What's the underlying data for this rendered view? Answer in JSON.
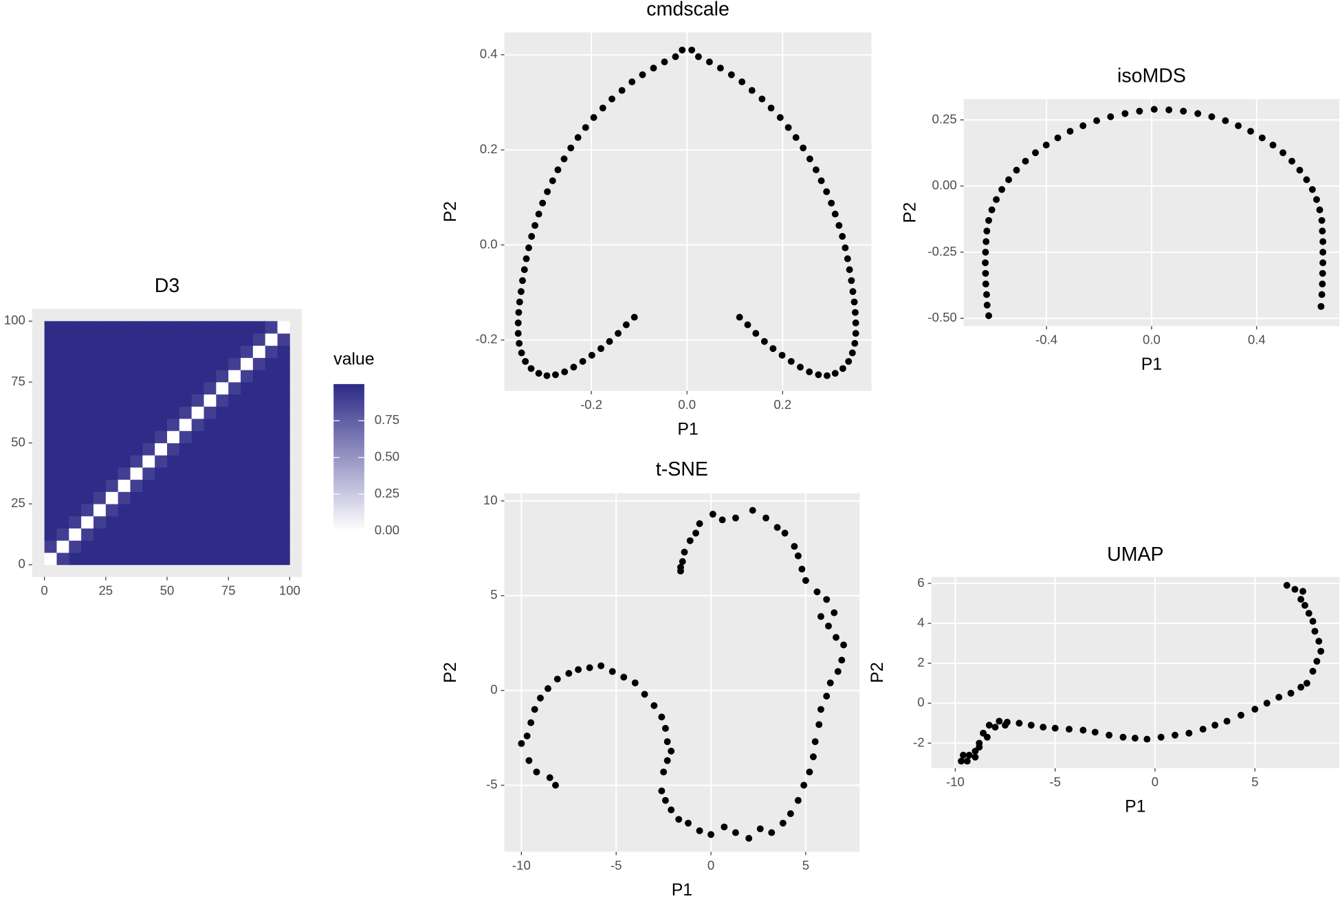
{
  "chart_data": [
    {
      "type": "heatmap",
      "title": "D3",
      "legend_title": "value",
      "colors": [
        "#ffffff",
        "#2d2a87"
      ],
      "zlim": [
        0,
        1
      ],
      "legend_ticks": [
        {
          "value": 0,
          "label": "0.00"
        },
        0.25,
        {
          "value": 0.5,
          "label": "0.50"
        },
        0.75
      ],
      "xbins": [
        0,
        5,
        10,
        15,
        20,
        25,
        30,
        35,
        40,
        45,
        50,
        55,
        60,
        65,
        70,
        75,
        80,
        85,
        90,
        95,
        100
      ],
      "ybins": [
        0,
        5,
        10,
        15,
        20,
        25,
        30,
        35,
        40,
        45,
        50,
        55,
        60,
        65,
        70,
        75,
        80,
        85,
        90,
        95,
        100
      ],
      "values": [
        [
          0,
          0.9,
          0.99,
          0.99,
          0.99,
          0.99,
          0.99,
          0.99,
          0.99,
          0.99,
          0.99,
          0.99,
          0.99,
          0.99,
          0.99,
          0.99,
          0.99,
          0.99,
          0.99,
          0.99
        ],
        [
          0.9,
          0,
          0.9,
          0.99,
          0.99,
          0.99,
          0.99,
          0.99,
          0.99,
          0.99,
          0.99,
          0.99,
          0.99,
          0.99,
          0.99,
          0.99,
          0.99,
          0.99,
          0.99,
          0.99
        ],
        [
          0.99,
          0.9,
          0,
          0.9,
          0.99,
          0.99,
          0.99,
          0.99,
          0.99,
          0.99,
          0.99,
          0.99,
          0.99,
          0.99,
          0.99,
          0.99,
          0.99,
          0.99,
          0.99,
          0.99
        ],
        [
          0.99,
          0.99,
          0.9,
          0,
          0.9,
          0.99,
          0.99,
          0.99,
          0.99,
          0.99,
          0.99,
          0.99,
          0.99,
          0.99,
          0.99,
          0.99,
          0.99,
          0.99,
          0.99,
          0.99
        ],
        [
          0.99,
          0.99,
          0.99,
          0.9,
          0,
          0.9,
          0.99,
          0.99,
          0.99,
          0.99,
          0.99,
          0.99,
          0.99,
          0.99,
          0.99,
          0.99,
          0.99,
          0.99,
          0.99,
          0.99
        ],
        [
          0.99,
          0.99,
          0.99,
          0.99,
          0.9,
          0,
          0.9,
          0.99,
          0.99,
          0.99,
          0.99,
          0.99,
          0.99,
          0.99,
          0.99,
          0.99,
          0.99,
          0.99,
          0.99,
          0.99
        ],
        [
          0.99,
          0.99,
          0.99,
          0.99,
          0.99,
          0.9,
          0,
          0.9,
          0.99,
          0.99,
          0.99,
          0.99,
          0.99,
          0.99,
          0.99,
          0.99,
          0.99,
          0.99,
          0.99,
          0.99
        ],
        [
          0.99,
          0.99,
          0.99,
          0.99,
          0.99,
          0.99,
          0.9,
          0,
          0.9,
          0.99,
          0.99,
          0.99,
          0.99,
          0.99,
          0.99,
          0.99,
          0.99,
          0.99,
          0.99,
          0.99
        ],
        [
          0.99,
          0.99,
          0.99,
          0.99,
          0.99,
          0.99,
          0.99,
          0.9,
          0,
          0.9,
          0.99,
          0.99,
          0.99,
          0.99,
          0.99,
          0.99,
          0.99,
          0.99,
          0.99,
          0.99
        ],
        [
          0.99,
          0.99,
          0.99,
          0.99,
          0.99,
          0.99,
          0.99,
          0.99,
          0.9,
          0,
          0.9,
          0.99,
          0.99,
          0.99,
          0.99,
          0.99,
          0.99,
          0.99,
          0.99,
          0.99
        ],
        [
          0.99,
          0.99,
          0.99,
          0.99,
          0.99,
          0.99,
          0.99,
          0.99,
          0.99,
          0.9,
          0,
          0.9,
          0.99,
          0.99,
          0.99,
          0.99,
          0.99,
          0.99,
          0.99,
          0.99
        ],
        [
          0.99,
          0.99,
          0.99,
          0.99,
          0.99,
          0.99,
          0.99,
          0.99,
          0.99,
          0.99,
          0.9,
          0,
          0.9,
          0.99,
          0.99,
          0.99,
          0.99,
          0.99,
          0.99,
          0.99
        ],
        [
          0.99,
          0.99,
          0.99,
          0.99,
          0.99,
          0.99,
          0.99,
          0.99,
          0.99,
          0.99,
          0.99,
          0.9,
          0,
          0.9,
          0.99,
          0.99,
          0.99,
          0.99,
          0.99,
          0.99
        ],
        [
          0.99,
          0.99,
          0.99,
          0.99,
          0.99,
          0.99,
          0.99,
          0.99,
          0.99,
          0.99,
          0.99,
          0.99,
          0.9,
          0,
          0.9,
          0.99,
          0.99,
          0.99,
          0.99,
          0.99
        ],
        [
          0.99,
          0.99,
          0.99,
          0.99,
          0.99,
          0.99,
          0.99,
          0.99,
          0.99,
          0.99,
          0.99,
          0.99,
          0.99,
          0.9,
          0,
          0.9,
          0.99,
          0.99,
          0.99,
          0.99
        ],
        [
          0.99,
          0.99,
          0.99,
          0.99,
          0.99,
          0.99,
          0.99,
          0.99,
          0.99,
          0.99,
          0.99,
          0.99,
          0.99,
          0.99,
          0.9,
          0,
          0.9,
          0.99,
          0.99,
          0.99
        ],
        [
          0.99,
          0.99,
          0.99,
          0.99,
          0.99,
          0.99,
          0.99,
          0.99,
          0.99,
          0.99,
          0.99,
          0.99,
          0.99,
          0.99,
          0.99,
          0.9,
          0,
          0.9,
          0.99,
          0.99
        ],
        [
          0.99,
          0.99,
          0.99,
          0.99,
          0.99,
          0.99,
          0.99,
          0.99,
          0.99,
          0.99,
          0.99,
          0.99,
          0.99,
          0.99,
          0.99,
          0.99,
          0.9,
          0,
          0.9,
          0.99
        ],
        [
          0.99,
          0.99,
          0.99,
          0.99,
          0.99,
          0.99,
          0.99,
          0.99,
          0.99,
          0.99,
          0.99,
          0.99,
          0.99,
          0.99,
          0.99,
          0.99,
          0.99,
          0.9,
          0,
          0.9
        ],
        [
          0.99,
          0.99,
          0.99,
          0.99,
          0.99,
          0.99,
          0.99,
          0.99,
          0.99,
          0.99,
          0.99,
          0.99,
          0.99,
          0.99,
          0.99,
          0.99,
          0.99,
          0.99,
          0.9,
          0
        ]
      ],
      "xlim": [
        -5,
        105
      ],
      "ylim": [
        -5,
        105
      ],
      "xticks": [
        0,
        25,
        50,
        75,
        100
      ],
      "yticks": [
        0,
        25,
        50,
        75,
        100
      ],
      "grid": false
    },
    {
      "type": "scatter",
      "title": "cmdscale",
      "xlabel": "P1",
      "ylabel": "P2",
      "color": "#000000",
      "grid": true,
      "xlim": [
        -0.382,
        0.386
      ],
      "ylim": [
        -0.307,
        0.447
      ],
      "xticks": [
        -0.2,
        {
          "value": 0,
          "label": "0.0"
        },
        0.2
      ],
      "yticks": [
        -0.2,
        {
          "value": 0,
          "label": "0.0"
        },
        0.2,
        0.4
      ],
      "x": [
        -0.11,
        -0.127,
        -0.144,
        -0.162,
        -0.18,
        -0.199,
        -0.218,
        -0.237,
        -0.256,
        -0.275,
        -0.293,
        -0.31,
        -0.326,
        -0.338,
        -0.346,
        -0.351,
        -0.353,
        -0.353,
        -0.352,
        -0.35,
        -0.347,
        -0.344,
        -0.34,
        -0.336,
        -0.331,
        -0.325,
        -0.318,
        -0.31,
        -0.302,
        -0.292,
        -0.281,
        -0.27,
        -0.257,
        -0.243,
        -0.228,
        -0.212,
        -0.195,
        -0.176,
        -0.157,
        -0.136,
        -0.115,
        -0.093,
        -0.07,
        -0.047,
        -0.024,
        -0.01,
        0.01,
        0.024,
        0.047,
        0.07,
        0.093,
        0.115,
        0.136,
        0.157,
        0.176,
        0.195,
        0.212,
        0.228,
        0.243,
        0.257,
        0.27,
        0.281,
        0.292,
        0.302,
        0.31,
        0.318,
        0.325,
        0.331,
        0.336,
        0.34,
        0.344,
        0.347,
        0.35,
        0.352,
        0.353,
        0.353,
        0.351,
        0.346,
        0.338,
        0.326,
        0.31,
        0.293,
        0.275,
        0.256,
        0.237,
        0.218,
        0.199,
        0.18,
        0.162,
        0.144,
        0.127,
        0.11
      ],
      "y": [
        -0.152,
        -0.168,
        -0.186,
        -0.203,
        -0.218,
        -0.232,
        -0.245,
        -0.257,
        -0.267,
        -0.273,
        -0.275,
        -0.27,
        -0.26,
        -0.245,
        -0.227,
        -0.207,
        -0.186,
        -0.164,
        -0.142,
        -0.12,
        -0.098,
        -0.075,
        -0.052,
        -0.029,
        -0.006,
        0.018,
        0.041,
        0.065,
        0.088,
        0.112,
        0.135,
        0.158,
        0.181,
        0.204,
        0.226,
        0.247,
        0.268,
        0.288,
        0.307,
        0.325,
        0.343,
        0.358,
        0.372,
        0.385,
        0.396,
        0.41,
        0.41,
        0.396,
        0.385,
        0.372,
        0.358,
        0.343,
        0.325,
        0.307,
        0.288,
        0.268,
        0.247,
        0.226,
        0.204,
        0.181,
        0.158,
        0.135,
        0.112,
        0.088,
        0.065,
        0.041,
        0.018,
        -0.006,
        -0.029,
        -0.052,
        -0.075,
        -0.098,
        -0.12,
        -0.142,
        -0.164,
        -0.186,
        -0.207,
        -0.227,
        -0.245,
        -0.26,
        -0.27,
        -0.275,
        -0.273,
        -0.267,
        -0.257,
        -0.245,
        -0.232,
        -0.218,
        -0.203,
        -0.186,
        -0.168,
        -0.152
      ]
    },
    {
      "type": "scatter",
      "title": "isoMDS",
      "xlabel": "P1",
      "ylabel": "P2",
      "color": "#000000",
      "grid": true,
      "xlim": [
        -0.715,
        0.715
      ],
      "ylim": [
        -0.529,
        0.329
      ],
      "xticks": [
        -0.4,
        {
          "value": 0,
          "label": "0.0"
        },
        0.4
      ],
      "yticks": [
        {
          "value": -0.5,
          "label": "-0.50"
        },
        -0.25,
        {
          "value": 0,
          "label": "0.00"
        },
        0.25
      ],
      "x": [
        -0.62,
        -0.626,
        -0.628,
        -0.631,
        -0.632,
        -0.633,
        -0.632,
        -0.63,
        -0.627,
        -0.62,
        -0.608,
        -0.591,
        -0.57,
        -0.544,
        -0.514,
        -0.48,
        -0.442,
        -0.401,
        -0.357,
        -0.31,
        -0.261,
        -0.209,
        -0.156,
        -0.101,
        -0.046,
        0.01,
        0.066,
        0.121,
        0.176,
        0.229,
        0.281,
        0.33,
        0.377,
        0.421,
        0.462,
        0.5,
        0.534,
        0.564,
        0.59,
        0.612,
        0.628,
        0.64,
        0.648,
        0.65,
        0.652,
        0.652,
        0.652,
        0.651,
        0.65,
        0.648,
        0.645
      ],
      "y": [
        -0.49,
        -0.45,
        -0.41,
        -0.37,
        -0.33,
        -0.29,
        -0.25,
        -0.21,
        -0.17,
        -0.13,
        -0.09,
        -0.051,
        -0.013,
        0.024,
        0.06,
        0.094,
        0.126,
        0.155,
        0.182,
        0.207,
        0.228,
        0.247,
        0.262,
        0.274,
        0.283,
        0.29,
        0.288,
        0.283,
        0.274,
        0.262,
        0.247,
        0.228,
        0.207,
        0.182,
        0.155,
        0.126,
        0.094,
        0.06,
        0.024,
        -0.013,
        -0.051,
        -0.09,
        -0.13,
        -0.17,
        -0.21,
        -0.25,
        -0.29,
        -0.33,
        -0.37,
        -0.41,
        -0.455
      ]
    },
    {
      "type": "scatter",
      "title": "t-SNE",
      "xlabel": "P1",
      "ylabel": "P2",
      "color": "#000000",
      "grid": true,
      "xlim": [
        -10.9,
        7.84
      ],
      "ylim": [
        -8.51,
        10.4
      ],
      "xticks": [
        -10,
        -5,
        0,
        5
      ],
      "yticks": [
        -5,
        0,
        5,
        10
      ],
      "x": [
        -8.2,
        -8.5,
        -9.2,
        -9.6,
        -10,
        -9.7,
        -9.5,
        -9.3,
        -9.0,
        -8.6,
        -8.1,
        -7.5,
        -7.0,
        -6.4,
        -5.8,
        -5.2,
        -4.6,
        -4.0,
        -3.5,
        -3.0,
        -2.6,
        -2.4,
        -2.3,
        -2.1,
        -2.3,
        -2.5,
        -2.6,
        -2.4,
        -2.1,
        -1.7,
        -1.2,
        -0.6,
        0.0,
        0.7,
        1.3,
        2.0,
        2.6,
        3.2,
        3.8,
        4.2,
        4.6,
        4.9,
        5.2,
        5.4,
        5.5,
        5.7,
        5.8,
        6.1,
        6.3,
        6.7,
        6.9,
        7.0,
        6.6,
        6.2,
        5.8,
        6.5,
        6.1,
        5.6,
        5.0,
        4.8,
        4.6,
        4.4,
        3.9,
        3.5,
        2.9,
        2.2,
        1.3,
        0.6,
        0.1,
        -0.6,
        -0.8,
        -1.1,
        -1.4,
        -1.5,
        -1.6,
        -1.6
      ],
      "y": [
        -5.0,
        -4.6,
        -4.3,
        -3.7,
        -2.8,
        -2.4,
        -1.7,
        -1.0,
        -0.4,
        0.1,
        0.6,
        0.9,
        1.1,
        1.2,
        1.3,
        1.0,
        0.7,
        0.4,
        -0.2,
        -0.8,
        -1.4,
        -2.0,
        -2.7,
        -3.2,
        -3.7,
        -4.3,
        -5.3,
        -5.8,
        -6.3,
        -6.8,
        -7.0,
        -7.4,
        -7.6,
        -7.2,
        -7.5,
        -7.8,
        -7.3,
        -7.5,
        -7.0,
        -6.5,
        -5.8,
        -5.0,
        -4.3,
        -3.5,
        -2.7,
        -1.8,
        -1.0,
        -0.3,
        0.4,
        1.0,
        1.6,
        2.4,
        2.8,
        3.4,
        3.9,
        4.1,
        4.8,
        5.2,
        5.8,
        6.4,
        7.1,
        7.6,
        8.3,
        8.6,
        9.1,
        9.5,
        9.1,
        9.0,
        9.3,
        8.8,
        8.3,
        7.9,
        7.3,
        6.8,
        6.5,
        6.3
      ]
    },
    {
      "type": "scatter",
      "title": "UMAP",
      "xlabel": "P1",
      "ylabel": "P2",
      "color": "#000000",
      "grid": true,
      "xlim": [
        -11.2,
        9.23
      ],
      "ylim": [
        -3.25,
        6.32
      ],
      "xticks": [
        -10,
        -5,
        0,
        5
      ],
      "yticks": [
        -2,
        0,
        2,
        4,
        6
      ],
      "x": [
        6.6,
        7.0,
        7.4,
        7.3,
        7.5,
        7.7,
        7.9,
        8.0,
        8.2,
        8.3,
        8.1,
        7.9,
        7.6,
        7.3,
        6.8,
        6.2,
        5.6,
        5.0,
        4.3,
        3.6,
        3.0,
        2.4,
        1.7,
        1.0,
        0.3,
        -0.4,
        -1.0,
        -1.6,
        -2.3,
        -3.0,
        -3.6,
        -4.3,
        -5.0,
        -5.6,
        -6.2,
        -6.8,
        -7.4,
        -7.8,
        -8.3,
        -8.6,
        -8.8,
        -9.0,
        -9.3,
        -9.6,
        -9.7,
        -9.4,
        -9.0,
        -8.8,
        -8.4,
        -8.0,
        -7.5
      ],
      "y": [
        5.9,
        5.7,
        5.6,
        5.2,
        4.9,
        4.5,
        4.1,
        3.6,
        3.1,
        2.6,
        2.1,
        1.6,
        1.0,
        0.8,
        0.5,
        0.3,
        0.0,
        -0.3,
        -0.6,
        -0.9,
        -1.1,
        -1.3,
        -1.5,
        -1.6,
        -1.7,
        -1.8,
        -1.75,
        -1.7,
        -1.6,
        -1.45,
        -1.35,
        -1.3,
        -1.25,
        -1.2,
        -1.1,
        -1.0,
        -0.95,
        -0.9,
        -1.1,
        -1.5,
        -2.0,
        -2.4,
        -2.6,
        -2.6,
        -2.9,
        -2.9,
        -2.7,
        -2.2,
        -1.7,
        -1.2,
        -1.1
      ]
    }
  ]
}
